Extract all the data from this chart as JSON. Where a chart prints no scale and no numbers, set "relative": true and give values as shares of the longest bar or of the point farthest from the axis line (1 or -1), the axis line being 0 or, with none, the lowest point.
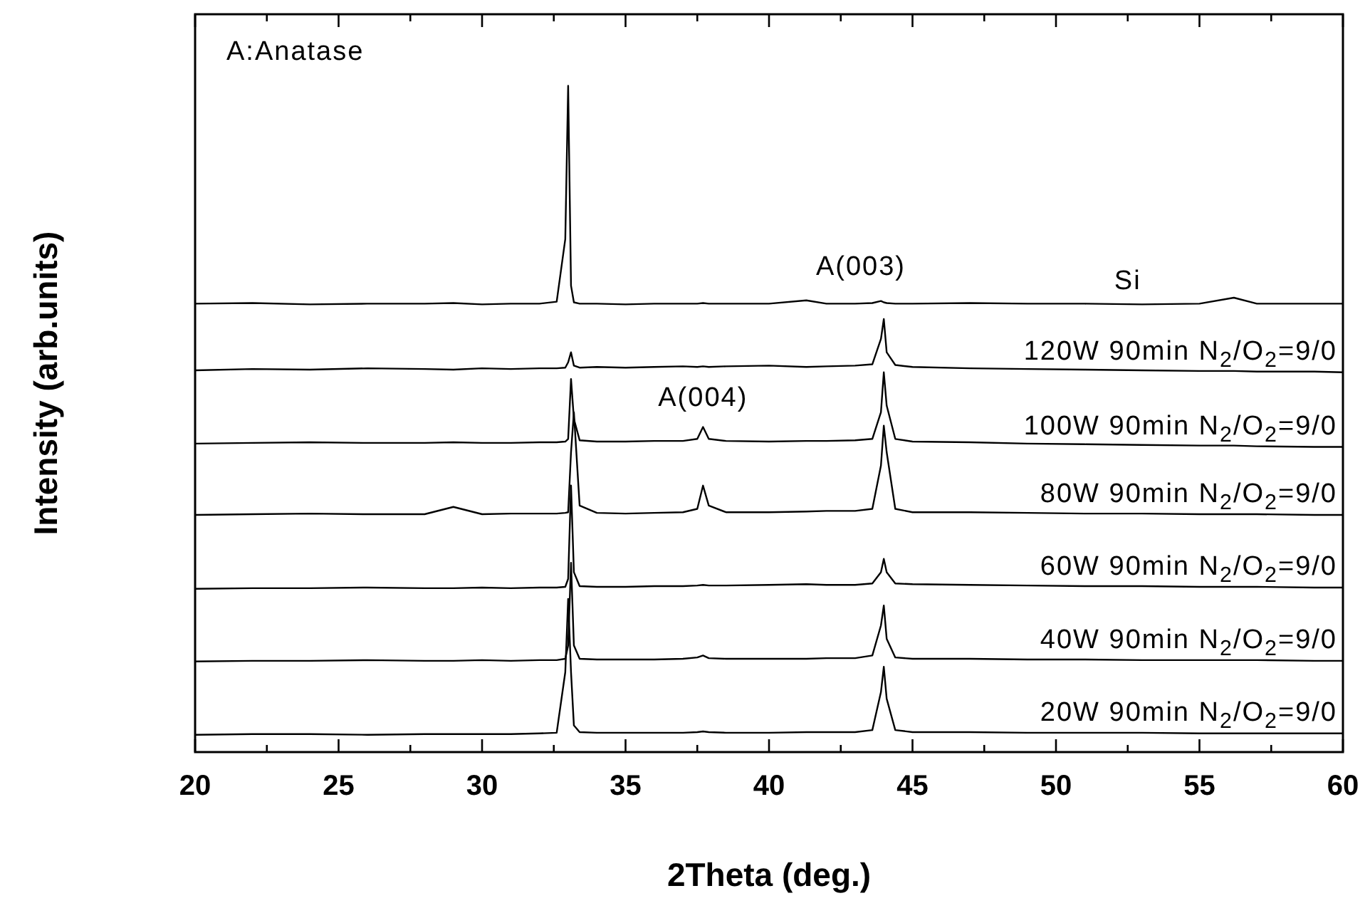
{
  "chart_data": {
    "type": "line",
    "relative": true,
    "xlabel": "2Theta (deg.)",
    "ylabel": "Intensity (arb.units)",
    "xlim": [
      20,
      60
    ],
    "xticks": [
      20,
      {
        "value": 22.5,
        "label": null
      },
      25,
      {
        "value": 27.5,
        "label": null
      },
      30,
      {
        "value": 32.5,
        "label": null
      },
      35,
      {
        "value": 37.5,
        "label": null
      },
      40,
      {
        "value": 42.5,
        "label": null
      },
      45,
      {
        "value": 47.5,
        "label": null
      },
      50,
      {
        "value": 52.5,
        "label": null
      },
      55,
      {
        "value": 57.5,
        "label": null
      },
      60
    ],
    "tick_labels": "x",
    "grid": false,
    "marker": "none",
    "line_style": "solid",
    "annotations": [
      "A:Anatase",
      "A(003)",
      "A(004)",
      "Si"
    ],
    "x": [
      20,
      22,
      24,
      26,
      28,
      29,
      30,
      31,
      32,
      32.6,
      32.9,
      33.0,
      33.1,
      33.2,
      33.4,
      34,
      35,
      36,
      37,
      37.5,
      37.7,
      37.9,
      38.5,
      40,
      41.3,
      42,
      43,
      43.6,
      43.9,
      44.0,
      44.1,
      44.4,
      45,
      47,
      49,
      51,
      53,
      55,
      56.2,
      57,
      59,
      60
    ],
    "series": [
      {
        "color": "#000000",
        "values": [
          0.673,
          0.674,
          0.672,
          0.673,
          0.673,
          0.674,
          0.672,
          0.673,
          0.673,
          0.676,
          0.77,
          1.0,
          0.7,
          0.675,
          0.673,
          0.673,
          0.672,
          0.673,
          0.673,
          0.673,
          0.674,
          0.673,
          0.673,
          0.673,
          0.678,
          0.673,
          0.673,
          0.674,
          0.677,
          0.675,
          0.674,
          0.673,
          0.673,
          0.674,
          0.673,
          0.673,
          0.672,
          0.673,
          0.682,
          0.673,
          0.673,
          0.673
        ]
      },
      {
        "name": "120W 90min N$_{2}$/O$_{2}$=9/0",
        "color": "#000000",
        "values": [
          0.573,
          0.575,
          0.574,
          0.576,
          0.575,
          0.574,
          0.576,
          0.575,
          0.576,
          0.576,
          0.577,
          0.585,
          0.6,
          0.58,
          0.577,
          0.578,
          0.577,
          0.578,
          0.579,
          0.578,
          0.579,
          0.578,
          0.579,
          0.58,
          0.578,
          0.579,
          0.58,
          0.582,
          0.62,
          0.65,
          0.6,
          0.581,
          0.578,
          0.576,
          0.575,
          0.574,
          0.573,
          0.572,
          0.572,
          0.571,
          0.571,
          0.57
        ]
      },
      {
        "name": "100W 90min N$_{2}$/O$_{2}$=9/0",
        "color": "#000000",
        "values": [
          0.463,
          0.464,
          0.465,
          0.464,
          0.464,
          0.465,
          0.464,
          0.464,
          0.465,
          0.465,
          0.466,
          0.47,
          0.56,
          0.5,
          0.468,
          0.466,
          0.466,
          0.467,
          0.467,
          0.47,
          0.488,
          0.47,
          0.467,
          0.466,
          0.467,
          0.467,
          0.468,
          0.47,
          0.51,
          0.57,
          0.52,
          0.47,
          0.466,
          0.465,
          0.463,
          0.462,
          0.461,
          0.46,
          0.46,
          0.459,
          0.458,
          0.458
        ]
      },
      {
        "name": "80W 90min N$_{2}$/O$_{2}$=9/0",
        "color": "#000000",
        "values": [
          0.356,
          0.357,
          0.358,
          0.357,
          0.357,
          0.368,
          0.357,
          0.358,
          0.358,
          0.358,
          0.359,
          0.36,
          0.45,
          0.51,
          0.37,
          0.359,
          0.358,
          0.359,
          0.36,
          0.365,
          0.4,
          0.37,
          0.36,
          0.36,
          0.361,
          0.362,
          0.362,
          0.365,
          0.43,
          0.49,
          0.45,
          0.365,
          0.36,
          0.36,
          0.359,
          0.358,
          0.358,
          0.357,
          0.357,
          0.357,
          0.356,
          0.356
        ]
      },
      {
        "name": "60W 90min N$_{2}$/O$_{2}$=9/0",
        "color": "#000000",
        "values": [
          0.245,
          0.246,
          0.246,
          0.247,
          0.246,
          0.246,
          0.247,
          0.246,
          0.247,
          0.247,
          0.248,
          0.26,
          0.4,
          0.27,
          0.249,
          0.248,
          0.248,
          0.249,
          0.249,
          0.25,
          0.251,
          0.25,
          0.25,
          0.251,
          0.252,
          0.251,
          0.251,
          0.253,
          0.27,
          0.29,
          0.27,
          0.253,
          0.252,
          0.251,
          0.25,
          0.249,
          0.249,
          0.248,
          0.248,
          0.248,
          0.247,
          0.247
        ]
      },
      {
        "name": "40W 90min N$_{2}$/O$_{2}$=9/0",
        "color": "#000000",
        "values": [
          0.136,
          0.137,
          0.137,
          0.138,
          0.137,
          0.137,
          0.138,
          0.137,
          0.138,
          0.138,
          0.14,
          0.16,
          0.284,
          0.16,
          0.14,
          0.139,
          0.139,
          0.139,
          0.14,
          0.142,
          0.145,
          0.141,
          0.14,
          0.14,
          0.14,
          0.141,
          0.141,
          0.145,
          0.19,
          0.22,
          0.17,
          0.142,
          0.14,
          0.14,
          0.139,
          0.139,
          0.138,
          0.138,
          0.138,
          0.138,
          0.137,
          0.137
        ]
      },
      {
        "name": "20W 90min N$_{2}$/O$_{2}$=9/0",
        "color": "#000000",
        "values": [
          0.026,
          0.027,
          0.027,
          0.026,
          0.027,
          0.027,
          0.027,
          0.027,
          0.028,
          0.029,
          0.12,
          0.23,
          0.12,
          0.04,
          0.03,
          0.029,
          0.029,
          0.029,
          0.029,
          0.03,
          0.031,
          0.03,
          0.029,
          0.029,
          0.03,
          0.03,
          0.03,
          0.033,
          0.09,
          0.128,
          0.08,
          0.033,
          0.03,
          0.03,
          0.029,
          0.029,
          0.029,
          0.028,
          0.028,
          0.028,
          0.028,
          0.028
        ]
      }
    ]
  }
}
